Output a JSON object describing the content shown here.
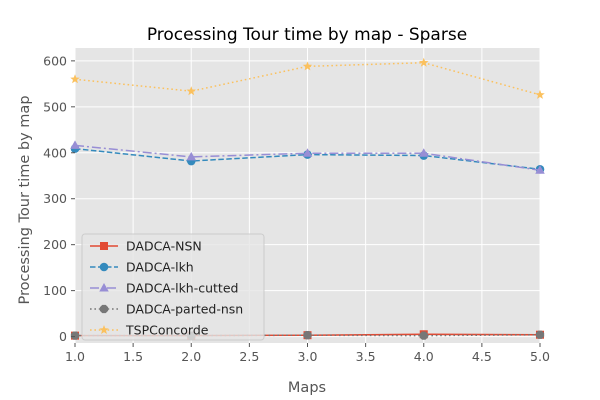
{
  "chart_data": {
    "type": "line",
    "title": "Processing Tour time by map - Sparse",
    "xlabel": "Maps",
    "ylabel": "Processing Tour time by map",
    "xlim": [
      1.0,
      5.0
    ],
    "ylim": [
      -14,
      628
    ],
    "x": [
      1,
      2,
      3,
      4,
      5
    ],
    "xticks": [
      1.0,
      1.5,
      2.0,
      2.5,
      3.0,
      3.5,
      4.0,
      4.5,
      5.0
    ],
    "xtick_labels": [
      "1.0",
      "1.5",
      "2.0",
      "2.5",
      "3.0",
      "3.5",
      "4.0",
      "4.5",
      "5.0"
    ],
    "yticks": [
      0,
      100,
      200,
      300,
      400,
      500,
      600
    ],
    "ytick_labels": [
      "0",
      "100",
      "200",
      "300",
      "400",
      "500",
      "600"
    ],
    "grid": true,
    "legend_position": "lower-left",
    "background": "#e5e5e5",
    "series": [
      {
        "name": "DADCA-NSN",
        "values": [
          2,
          2,
          3,
          5,
          4
        ],
        "color": "#e24a33",
        "marker": "square",
        "dash": "solid"
      },
      {
        "name": "DADCA-lkh",
        "values": [
          409,
          382,
          396,
          394,
          364
        ],
        "color": "#348abd",
        "marker": "circle",
        "dash": "dashed"
      },
      {
        "name": "DADCA-lkh-cutted",
        "values": [
          416,
          391,
          399,
          399,
          362
        ],
        "color": "#988ed5",
        "marker": "triangle",
        "dash": "dashdot"
      },
      {
        "name": "DADCA-parted-nsn",
        "values": [
          2,
          2,
          3,
          2,
          4
        ],
        "color": "#777777",
        "marker": "octagon",
        "dash": "dotted"
      },
      {
        "name": "TSPConcorde",
        "values": [
          560,
          534,
          588,
          596,
          526
        ],
        "color": "#fbc15e",
        "marker": "star",
        "dash": "dotted"
      }
    ]
  }
}
